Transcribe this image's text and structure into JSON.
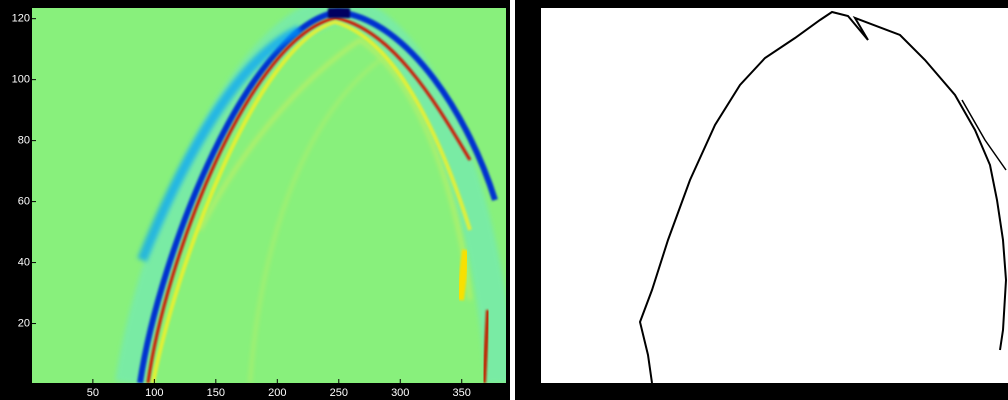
{
  "left_panel": {
    "xlim": [
      0.5,
      386
    ],
    "ylim": [
      0.5,
      123.5
    ],
    "xticks": [
      50,
      100,
      150,
      200,
      250,
      300,
      350
    ],
    "yticks": [
      20,
      40,
      60,
      80,
      100,
      120
    ]
  }
}
